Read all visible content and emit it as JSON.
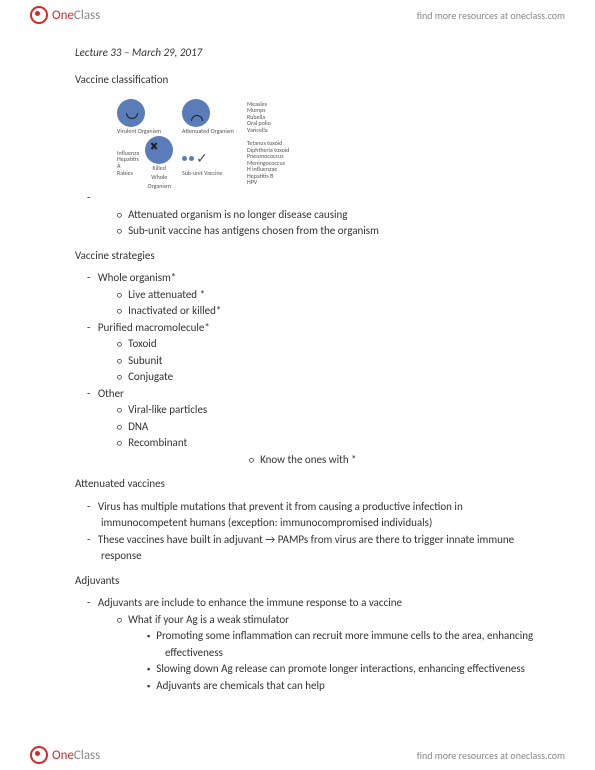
{
  "header": {
    "logo_one": "One",
    "logo_class": "Class",
    "link": "find more resources at oneclass.com"
  },
  "page": {
    "lecture_title": "Lecture 33 – March 29, 2017",
    "sec_classification": "Vaccine classification",
    "diagram": {
      "virulent_label": "Virulent Organism",
      "virulent_list": "",
      "attenuated_label": "Attenuated Organism",
      "attenuated_list": "Measles\nMumps\nRubella\nOral polio\nVaricella",
      "killed_label": "Killed Whole Organism",
      "killed_list": "Influenza\nHepatitis A\nRabies",
      "subunit_label": "Sub-unit Vaccine",
      "subunit_list": "Tetanus toxoid\nDiphtheria toxoid\nPneumococcus\nMeningococcus\nH influenzae\nHepatitis B\nHPV"
    },
    "class_b1": "Attenuated organism is no longer disease causing",
    "class_b2": "Sub-unit vaccine has antigens chosen from the organism",
    "sec_strategies": "Vaccine strategies",
    "strat_whole": "Whole organism*",
    "strat_whole_a": "Live attenuated *",
    "strat_whole_b": "Inactivated or killed*",
    "strat_macro": "Purified macromolecule*",
    "strat_macro_a": "Toxoid",
    "strat_macro_b": "Subunit",
    "strat_macro_c": "Conjugate",
    "strat_other": "Other",
    "strat_other_a": "Viral-like particles",
    "strat_other_b": "DNA",
    "strat_other_c": "Recombinant",
    "strat_note": "Know the ones with *",
    "sec_atten": "Attenuated vaccines",
    "atten_b1": "Virus has multiple mutations that prevent it from causing a productive infection in immunocompetent humans (exception: immunocompromised individuals)",
    "atten_b2": "These vaccines have built in adjuvant → PAMPs from virus are there to trigger innate immune response",
    "sec_adjuvants": "Adjuvants",
    "adj_b1": "Adjuvants are include to enhance the immune response to a vaccine",
    "adj_b1_a": "What if your Ag is a weak stimulator",
    "adj_b1_a_i": "Promoting some inflammation can recruit more immune cells to the area, enhancing effectiveness",
    "adj_b1_a_ii": "Slowing down Ag release can promote longer interactions, enhancing effectiveness",
    "adj_b1_a_iii": "Adjuvants are chemicals that can help"
  }
}
